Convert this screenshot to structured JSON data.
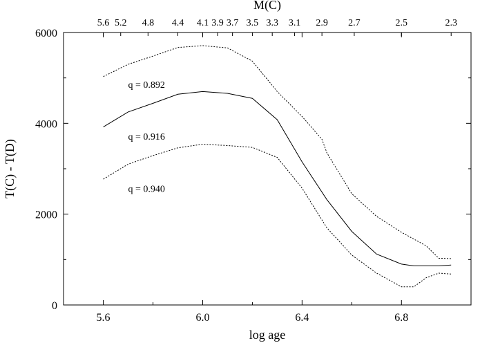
{
  "chart_data": {
    "type": "line",
    "title": "",
    "xlabel": "log age",
    "ylabel": "T(C) - T(D)",
    "top_axis_label": "M(C)",
    "xlim": [
      5.44,
      7.08
    ],
    "ylim": [
      0,
      6000
    ],
    "x_ticks": [
      5.6,
      6.0,
      6.4,
      6.8
    ],
    "x_tick_labels": [
      "5.6",
      "6.0",
      "6.4",
      "6.8"
    ],
    "y_ticks": [
      0,
      2000,
      4000,
      6000
    ],
    "y_tick_labels": [
      "0",
      "2000",
      "4000",
      "6000"
    ],
    "top_ticks": [
      {
        "label": "5.6",
        "x": 5.6
      },
      {
        "label": "5.2",
        "x": 5.67
      },
      {
        "label": "4.8",
        "x": 5.78
      },
      {
        "label": "4.4",
        "x": 5.9
      },
      {
        "label": "4.1",
        "x": 6.0
      },
      {
        "label": "3.9",
        "x": 6.06
      },
      {
        "label": "3.7",
        "x": 6.12
      },
      {
        "label": "3.5",
        "x": 6.2
      },
      {
        "label": "3.3",
        "x": 6.28
      },
      {
        "label": "3.1",
        "x": 6.37
      },
      {
        "label": "2.9",
        "x": 6.48
      },
      {
        "label": "2.7",
        "x": 6.61
      },
      {
        "label": "2.5",
        "x": 6.8
      },
      {
        "label": "2.3",
        "x": 7.0
      }
    ],
    "series": [
      {
        "name": "q = 0.892",
        "style": "dotted",
        "label_at": [
          5.7,
          4780
        ],
        "x": [
          5.6,
          5.7,
          5.8,
          5.9,
          6.0,
          6.1,
          6.2,
          6.3,
          6.4,
          6.48,
          6.5,
          6.6,
          6.7,
          6.8,
          6.9,
          6.95,
          7.0
        ],
        "y": [
          5030,
          5300,
          5480,
          5670,
          5710,
          5660,
          5370,
          4700,
          4150,
          3650,
          3350,
          2450,
          1950,
          1600,
          1300,
          1030,
          1020
        ]
      },
      {
        "name": "q = 0.916",
        "style": "solid",
        "label_at": [
          5.7,
          3640
        ],
        "x": [
          5.6,
          5.7,
          5.8,
          5.9,
          6.0,
          6.1,
          6.2,
          6.3,
          6.4,
          6.5,
          6.6,
          6.7,
          6.8,
          6.85,
          6.9,
          6.95,
          7.0
        ],
        "y": [
          3920,
          4250,
          4440,
          4640,
          4700,
          4660,
          4550,
          4080,
          3150,
          2320,
          1620,
          1120,
          900,
          860,
          860,
          860,
          880
        ]
      },
      {
        "name": "q = 0.940",
        "style": "dotted",
        "label_at": [
          5.7,
          2490
        ],
        "x": [
          5.6,
          5.7,
          5.8,
          5.9,
          6.0,
          6.1,
          6.2,
          6.3,
          6.4,
          6.5,
          6.6,
          6.7,
          6.8,
          6.85,
          6.9,
          6.95,
          7.0
        ],
        "y": [
          2770,
          3100,
          3290,
          3460,
          3540,
          3510,
          3470,
          3250,
          2570,
          1700,
          1100,
          700,
          400,
          400,
          600,
          700,
          680
        ]
      }
    ]
  }
}
